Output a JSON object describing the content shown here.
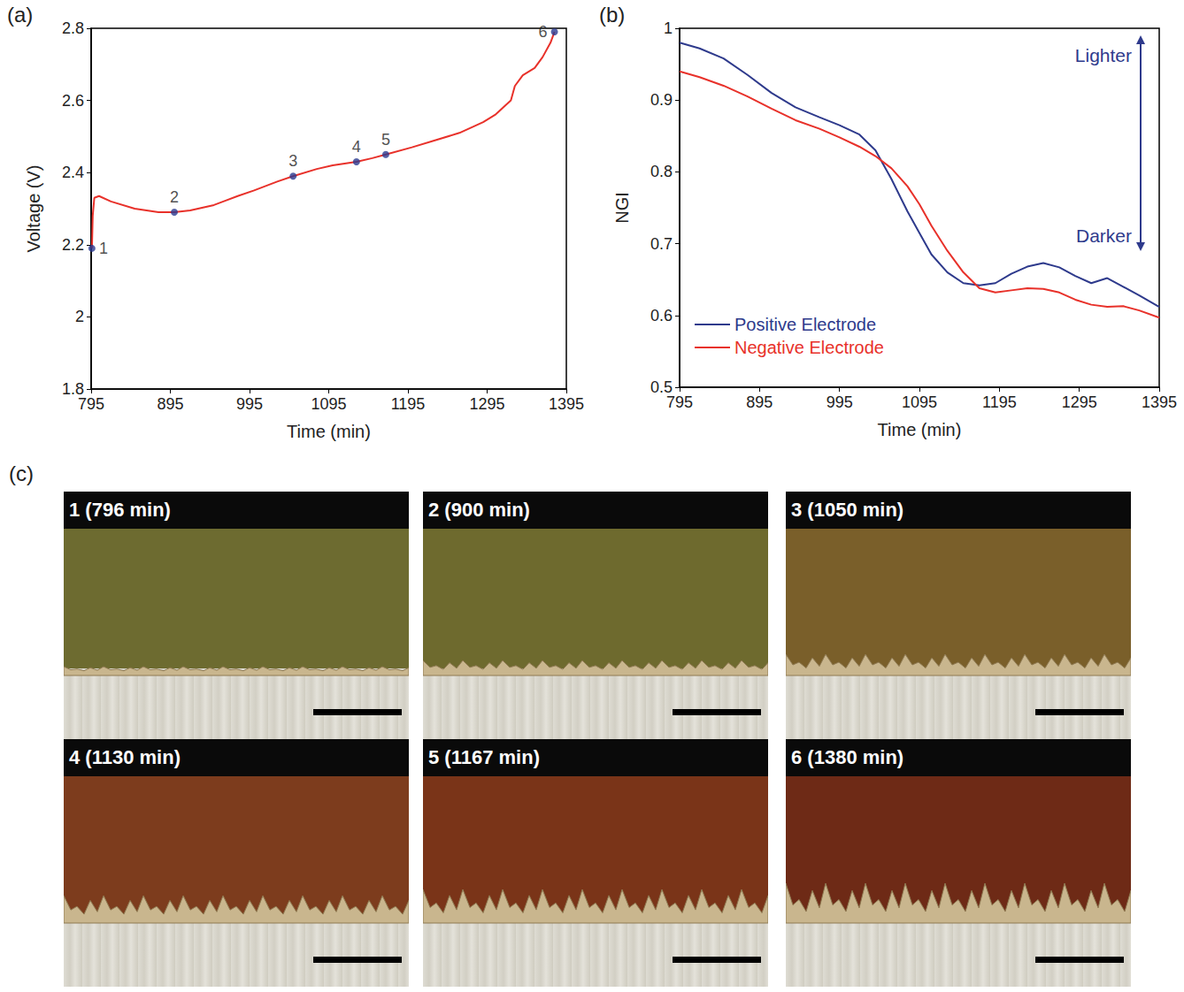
{
  "chart_data": [
    {
      "panel_label": "(a)",
      "type": "line",
      "x_label": "Time (min)",
      "y_label": "Voltage (V)",
      "x": [
        796,
        797,
        799,
        805,
        820,
        850,
        880,
        900,
        920,
        950,
        980,
        1000,
        1030,
        1050,
        1080,
        1100,
        1130,
        1150,
        1167,
        1200,
        1230,
        1260,
        1290,
        1305,
        1315,
        1325,
        1330,
        1340,
        1355,
        1365,
        1375,
        1380
      ],
      "series": [
        {
          "color": "#e8312a",
          "values": [
            2.19,
            2.28,
            2.33,
            2.335,
            2.32,
            2.3,
            2.29,
            2.29,
            2.295,
            2.31,
            2.335,
            2.35,
            2.375,
            2.39,
            2.41,
            2.42,
            2.43,
            2.44,
            2.45,
            2.47,
            2.49,
            2.51,
            2.54,
            2.56,
            2.58,
            2.6,
            2.64,
            2.67,
            2.69,
            2.72,
            2.76,
            2.79
          ]
        }
      ],
      "xlim": [
        795,
        1395
      ],
      "xticks": [
        795,
        895,
        995,
        1095,
        1195,
        1295,
        1395
      ],
      "ylim": [
        1.8,
        2.8
      ],
      "yticks": [
        1.8,
        2,
        2.2,
        2.4,
        2.6,
        2.8
      ],
      "grid": false,
      "annotations": [
        {
          "text": "1",
          "x": 796,
          "y": 2.19,
          "color": "#2b3990"
        },
        {
          "text": "2",
          "x": 900,
          "y": 2.29,
          "color": "#2b3990"
        },
        {
          "text": "3",
          "x": 1050,
          "y": 2.39,
          "color": "#2b3990"
        },
        {
          "text": "4",
          "x": 1130,
          "y": 2.43,
          "color": "#2b3990"
        },
        {
          "text": "5",
          "x": 1167,
          "y": 2.45,
          "color": "#2b3990"
        },
        {
          "text": "6",
          "x": 1380,
          "y": 2.79,
          "color": "#2b3990"
        }
      ]
    },
    {
      "panel_label": "(b)",
      "type": "line",
      "x_label": "Time (min)",
      "y_label": "NGI",
      "x": [
        795,
        820,
        850,
        880,
        910,
        940,
        970,
        995,
        1020,
        1040,
        1060,
        1080,
        1095,
        1110,
        1130,
        1150,
        1170,
        1190,
        1210,
        1230,
        1250,
        1270,
        1290,
        1310,
        1330,
        1350,
        1370,
        1395
      ],
      "series": [
        {
          "name": "Positive Electrode",
          "color": "#2e3a8c",
          "values": [
            0.98,
            0.972,
            0.958,
            0.935,
            0.91,
            0.89,
            0.876,
            0.865,
            0.852,
            0.83,
            0.79,
            0.745,
            0.715,
            0.685,
            0.66,
            0.645,
            0.642,
            0.645,
            0.658,
            0.668,
            0.673,
            0.667,
            0.655,
            0.645,
            0.652,
            0.64,
            0.628,
            0.612
          ]
        },
        {
          "name": "Negative Electrode",
          "color": "#e8312a",
          "values": [
            0.94,
            0.932,
            0.92,
            0.905,
            0.888,
            0.872,
            0.86,
            0.848,
            0.835,
            0.822,
            0.805,
            0.78,
            0.755,
            0.725,
            0.69,
            0.66,
            0.638,
            0.632,
            0.635,
            0.638,
            0.637,
            0.632,
            0.622,
            0.615,
            0.612,
            0.613,
            0.607,
            0.597
          ]
        }
      ],
      "xlim": [
        795,
        1395
      ],
      "xticks": [
        795,
        895,
        995,
        1095,
        1195,
        1295,
        1395
      ],
      "ylim": [
        0.5,
        1
      ],
      "yticks": [
        0.5,
        0.6,
        0.7,
        0.8,
        0.9,
        1
      ],
      "grid": false,
      "legend": "lower left",
      "annotations": [
        {
          "text": "Lighter",
          "color": "#2e3a8c"
        },
        {
          "text": "Darker",
          "color": "#2e3a8c"
        }
      ]
    }
  ],
  "micrographs": {
    "panel_label": "(c)",
    "images": [
      {
        "label": "1 (796 min)",
        "color": "#6d6b30"
      },
      {
        "label": "2 (900 min)",
        "color": "#6e6a2e"
      },
      {
        "label": "3 (1050 min)",
        "color": "#7a5f2a"
      },
      {
        "label": "4 (1130 min)",
        "color": "#7d3c1d"
      },
      {
        "label": "5 (1167 min)",
        "color": "#7a3418"
      },
      {
        "label": "6 (1380 min)",
        "color": "#6e2a16"
      }
    ]
  }
}
